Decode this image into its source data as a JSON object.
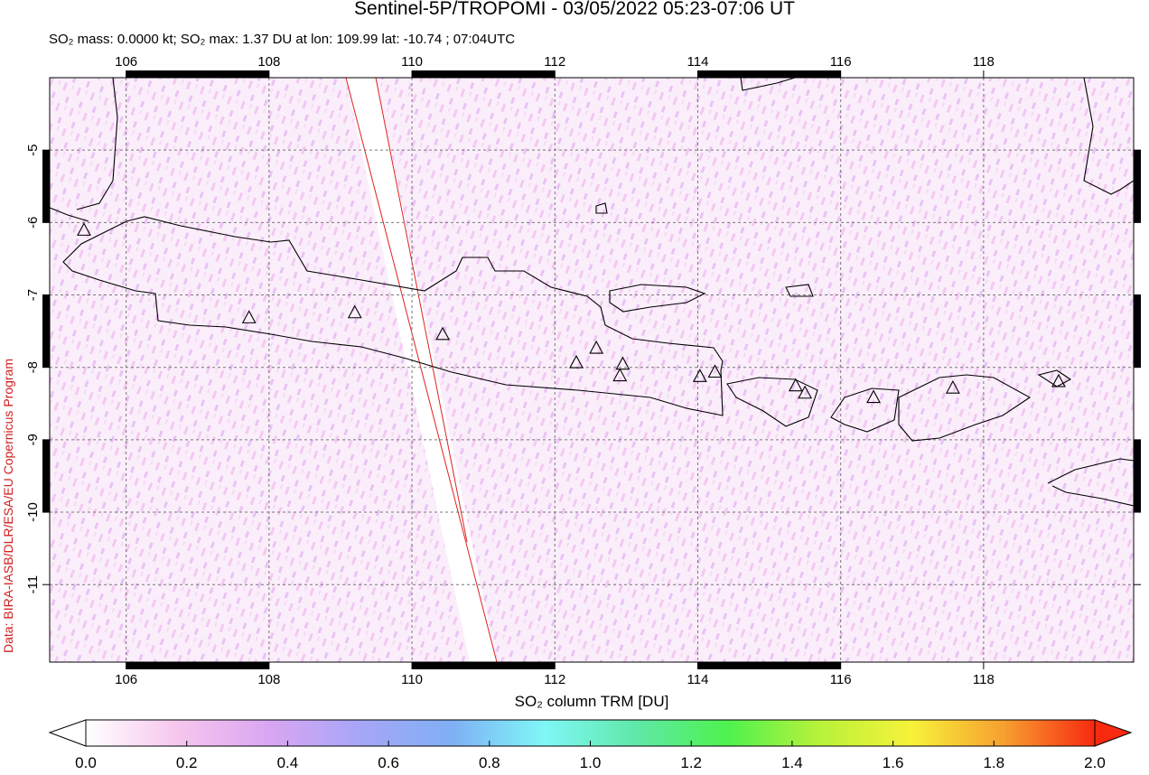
{
  "title": "Sentinel-5P/TROPOMI - 03/05/2022 05:23-07:06 UT",
  "subtitle": "SO₂ mass: 0.0000 kt; SO₂ max: 1.37 DU at lon: 109.99 lat: -10.74 ; 07:04UTC",
  "side_label": "Data: BIRA-IASB/DLR/ESA/EU Copernicus Program",
  "map": {
    "xlim": [
      104.93,
      120.1
    ],
    "ylim": [
      -12.07,
      -4.0
    ],
    "xticks": [
      106,
      108,
      110,
      112,
      114,
      116,
      118
    ],
    "yticks": [
      -5,
      -6,
      -7,
      -8,
      -9,
      -10,
      -11
    ],
    "grid": true,
    "volcanoes": {
      "lon": [
        105.41,
        107.72,
        109.2,
        110.43,
        112.3,
        112.58,
        112.95,
        112.91,
        114.03,
        114.24,
        115.37,
        115.5,
        116.46,
        117.57,
        119.05
      ],
      "lat": [
        -6.1,
        -7.31,
        -7.24,
        -7.54,
        -7.93,
        -7.73,
        -7.95,
        -8.11,
        -8.12,
        -8.06,
        -8.25,
        -8.35,
        -8.41,
        -8.28,
        -8.19
      ]
    }
  },
  "colorbar": {
    "label": "SO₂ column TRM [DU]",
    "lim": [
      0,
      2
    ],
    "ticks": [
      {
        "value": 0,
        "label": "0.0"
      },
      {
        "value": 0.2,
        "label": "0.2"
      },
      {
        "value": 0.4,
        "label": "0.4"
      },
      {
        "value": 0.6,
        "label": "0.6"
      },
      {
        "value": 0.8,
        "label": "0.8"
      },
      {
        "value": 1,
        "label": "1.0"
      },
      {
        "value": 1.2,
        "label": "1.2"
      },
      {
        "value": 1.4,
        "label": "1.4"
      },
      {
        "value": 1.6,
        "label": "1.6"
      },
      {
        "value": 1.8,
        "label": "1.8"
      },
      {
        "value": 2,
        "label": "2.0"
      }
    ],
    "colors": [
      "#ffffff",
      "#f6c6ee",
      "#d9a6f2",
      "#a6a6f7",
      "#7fb0f5",
      "#7ff7f7",
      "#5fe8a8",
      "#4ef24e",
      "#b8f23a",
      "#f7f23a",
      "#f7a030",
      "#f72a10"
    ]
  }
}
